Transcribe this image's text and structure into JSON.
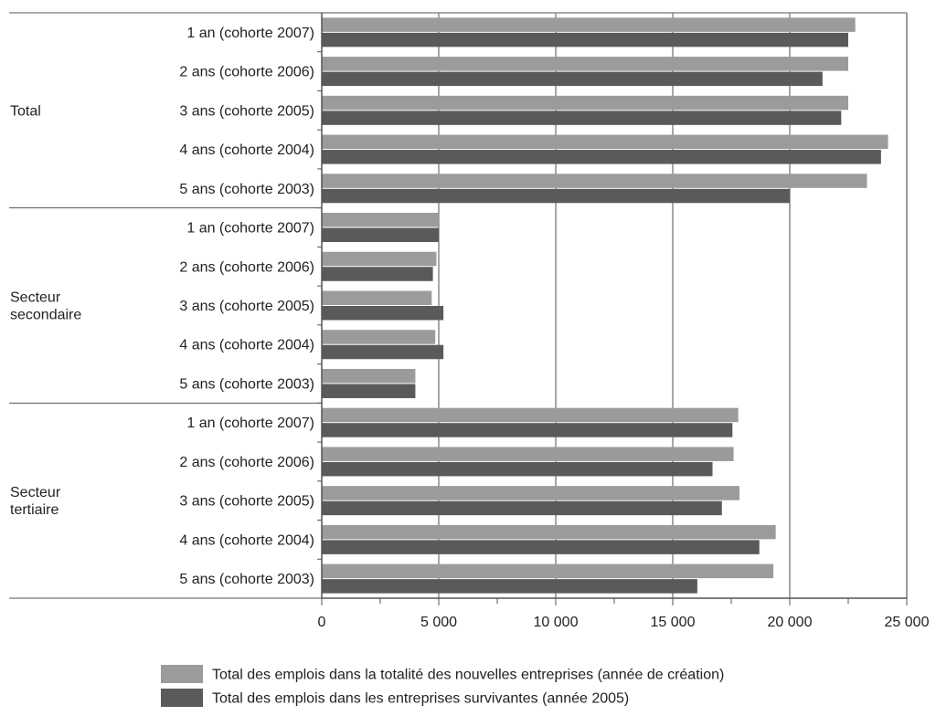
{
  "chart_data": {
    "type": "bar",
    "orientation": "horizontal",
    "xlim": [
      0,
      25000
    ],
    "x_ticks": [
      0,
      5000,
      10000,
      15000,
      20000,
      25000
    ],
    "x_tick_labels": [
      "0",
      "5 000",
      "10 000",
      "15 000",
      "20 000",
      "25 000"
    ],
    "grid": "vertical",
    "legend_position": "bottom",
    "groups": [
      {
        "label": "Total",
        "categories": [
          "1 an (cohorte 2007)",
          "2 ans (cohorte 2006)",
          "3 ans (cohorte 2005)",
          "4 ans (cohorte 2004)",
          "5 ans (cohorte 2003)"
        ],
        "series_values": [
          [
            22800,
            22500,
            22500,
            24200,
            23300
          ],
          [
            22500,
            21400,
            22200,
            23900,
            20000
          ]
        ]
      },
      {
        "label": "Secteur secondaire",
        "categories": [
          "1 an (cohorte 2007)",
          "2 ans (cohorte 2006)",
          "3 ans (cohorte 2005)",
          "4 ans (cohorte 2004)",
          "5 ans (cohorte 2003)"
        ],
        "series_values": [
          [
            5000,
            4900,
            4700,
            4850,
            4000
          ],
          [
            5000,
            4750,
            5200,
            5200,
            4000
          ]
        ]
      },
      {
        "label": "Secteur tertiaire",
        "categories": [
          "1 an (cohorte 2007)",
          "2 ans (cohorte 2006)",
          "3 ans (cohorte 2005)",
          "4 ans (cohorte 2004)",
          "5 ans (cohorte 2003)"
        ],
        "series_values": [
          [
            17800,
            17600,
            17850,
            19400,
            19300
          ],
          [
            17550,
            16700,
            17100,
            18700,
            16050
          ]
        ]
      }
    ],
    "series": [
      {
        "name": "Total des emplois dans la totalité des nouvelles entreprises (année de création)",
        "color": "#9b9b9b"
      },
      {
        "name": "Total des emplois dans les entreprises survivantes (année 2005)",
        "color": "#5a5a5a"
      }
    ]
  }
}
